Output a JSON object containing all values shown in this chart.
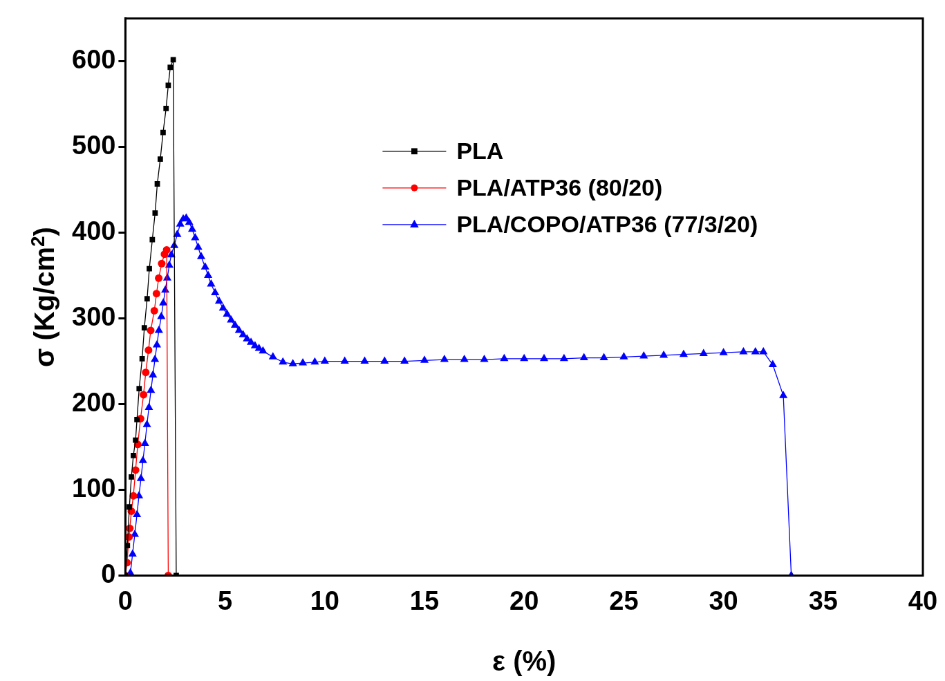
{
  "chart_data": {
    "type": "line",
    "xlabel": "ε (%)",
    "ylabel": "σ (Kg/cm$^{2}$)",
    "xlim": [
      0,
      40
    ],
    "xticks": [
      0,
      5,
      10,
      15,
      20,
      25,
      30,
      35,
      40
    ],
    "ylim": [
      0,
      650
    ],
    "yticks": [
      0,
      100,
      200,
      300,
      400,
      500,
      600
    ],
    "grid": false,
    "legend": "top right",
    "line_style": "solid",
    "series": [
      {
        "name": "PLA",
        "color": "#000000",
        "marker": "square",
        "x": [
          0,
          0.1,
          0.2,
          0.3,
          0.4,
          0.51,
          0.58,
          0.69,
          0.84,
          0.95,
          1.09,
          1.2,
          1.35,
          1.49,
          1.6,
          1.75,
          1.89,
          2.04,
          2.15,
          2.25,
          2.4,
          2.55
        ],
        "values": [
          0,
          35,
          80,
          115,
          140,
          158,
          182,
          218,
          253,
          289,
          323,
          358,
          392,
          423,
          457,
          486,
          517,
          545,
          572,
          593,
          602,
          0
        ]
      },
      {
        "name": "PLA/ATP36 (80/20)",
        "color": "#ff0000",
        "marker": "circle",
        "x": [
          0,
          0.08,
          0.18,
          0.22,
          0.3,
          0.4,
          0.51,
          0.62,
          0.76,
          0.91,
          1.02,
          1.16,
          1.27,
          1.45,
          1.56,
          1.67,
          1.82,
          1.96,
          2.07,
          2.15
        ],
        "values": [
          0,
          15,
          45,
          55,
          75,
          93,
          123,
          153,
          183,
          211,
          237,
          263,
          286,
          309,
          329,
          347,
          364,
          375,
          380,
          0
        ]
      },
      {
        "name": "PLA/COPO/ATP36 (77/3/20)",
        "color": "#0000ff",
        "marker": "triangle",
        "x": [
          0.25,
          0.36,
          0.47,
          0.58,
          0.68,
          0.78,
          0.88,
          0.98,
          1.08,
          1.18,
          1.28,
          1.38,
          1.48,
          1.58,
          1.68,
          1.8,
          1.9,
          2.0,
          2.1,
          2.2,
          2.3,
          2.45,
          2.6,
          2.75,
          2.9,
          3.05,
          3.2,
          3.35,
          3.5,
          3.65,
          3.8,
          4.0,
          4.15,
          4.3,
          4.5,
          4.7,
          4.9,
          5.1,
          5.3,
          5.5,
          5.7,
          5.9,
          6.1,
          6.3,
          6.5,
          6.7,
          6.9,
          7.4,
          7.9,
          8.4,
          8.9,
          9.5,
          10,
          11,
          12,
          13,
          14,
          15,
          16,
          17,
          18,
          19,
          20,
          21,
          22,
          23,
          24,
          25,
          26,
          27,
          28,
          29,
          30,
          31,
          31.6,
          32,
          32.47,
          33.0,
          33.4
        ],
        "values": [
          3,
          25,
          48,
          71,
          93,
          113,
          134,
          154,
          176,
          196,
          216,
          234,
          252,
          269,
          286,
          302,
          318,
          333,
          347,
          362,
          374,
          385,
          398,
          410,
          416,
          417,
          412,
          404,
          394,
          383,
          372,
          360,
          350,
          340,
          330,
          320,
          312,
          305,
          298,
          292,
          286,
          281,
          276,
          272,
          268,
          265,
          262,
          255,
          249,
          247,
          248,
          249,
          250,
          250,
          250,
          250,
          250,
          251,
          252,
          252,
          252,
          253,
          253,
          253,
          253,
          254,
          254,
          255,
          256,
          257,
          258,
          259,
          260,
          261,
          261,
          261,
          246,
          210,
          0
        ]
      }
    ]
  }
}
